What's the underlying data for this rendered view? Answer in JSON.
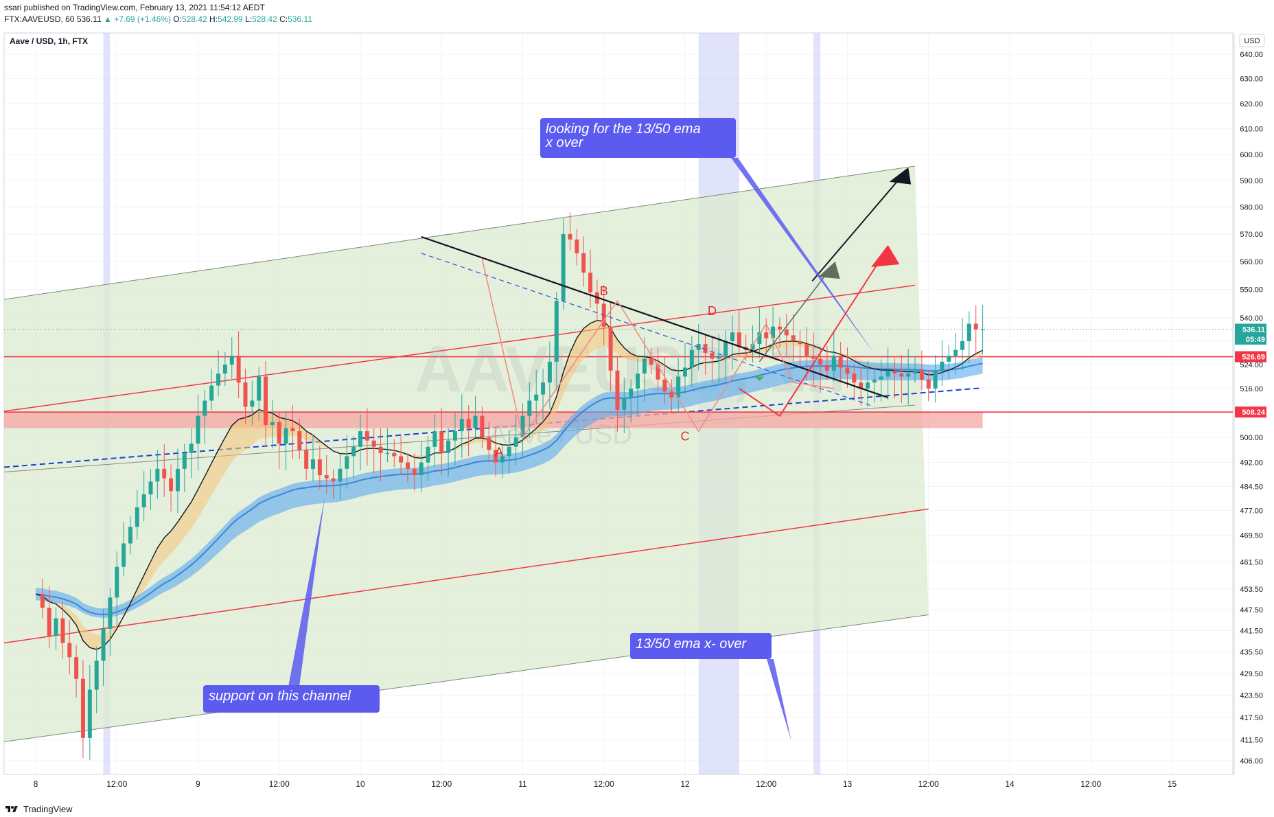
{
  "header": {
    "published": "ssari published on TradingView.com, February 13, 2021 11:54:12 AEDT",
    "symbol": "FTX:AAVEUSD, 60",
    "last": "536.11",
    "change": "+7.69 (+1.46%)",
    "o_label": "O:",
    "o": "528.42",
    "h_label": "H:",
    "h": "542.99",
    "l_label": "L:",
    "l": "528.42",
    "c_label": "C:",
    "c": "536.11"
  },
  "legend": "Aave / USD, 1h, FTX",
  "currency": "USD",
  "watermark": {
    "ticker": "AAVEUSD, 1h",
    "name": "Aave / USD"
  },
  "footer": {
    "brand": "TradingView"
  },
  "price_tags": [
    {
      "price": 536.11,
      "label": "536.11",
      "color": "#26a69a"
    },
    {
      "price": 532.7,
      "label": "05:49",
      "color": "#26a69a"
    },
    {
      "price": 526.69,
      "label": "526.69",
      "color": "#f23645"
    },
    {
      "price": 508.24,
      "label": "508.24",
      "color": "#f23645"
    }
  ],
  "annotations": [
    {
      "text": "looking for the 13/50 ema x over",
      "lines": [
        "looking for the 13/50 ema",
        "x over"
      ]
    },
    {
      "text": "13/50 ema x- over",
      "lines": [
        "13/50 ema x- over"
      ]
    },
    {
      "text": "support on this channel",
      "lines": [
        "support on this channel"
      ]
    }
  ],
  "pattern_labels": [
    "A",
    "B",
    "C",
    "D"
  ],
  "colors": {
    "up": "#26a69a",
    "down": "#ef5350",
    "channel_fill": "#dcebd0",
    "annotation": "#5b5bf0",
    "hline": "#f23645"
  },
  "chart_data": {
    "type": "candlestick",
    "title": "Aave / USD, 1h, FTX",
    "x_ticks": [
      "8",
      "12:00",
      "9",
      "12:00",
      "10",
      "12:00",
      "11",
      "12:00",
      "12",
      "12:00",
      "13",
      "12:00",
      "14",
      "12:00",
      "15"
    ],
    "y_ticks": [
      406.0,
      411.5,
      417.5,
      423.5,
      429.5,
      435.5,
      441.5,
      447.5,
      453.5,
      461.5,
      469.5,
      477.0,
      484.5,
      492.0,
      500.0,
      508.0,
      516.0,
      524.0,
      532.0,
      540.0,
      550.0,
      560.0,
      570.0,
      580.0,
      590.0,
      600.0,
      610.0,
      620.0,
      630.0,
      640.0
    ],
    "y_scale": "log",
    "ylim": [
      402,
      650
    ],
    "horizontal_levels": [
      526.69,
      508.24
    ],
    "support_zone": [
      503,
      508.24
    ],
    "close_series": [
      452,
      448,
      440,
      445,
      438,
      434,
      428,
      412,
      425,
      433,
      442,
      451,
      460,
      467,
      472,
      478,
      482,
      486,
      490,
      487,
      483,
      490,
      495,
      498,
      507,
      512,
      517,
      521,
      524,
      527,
      518,
      510,
      512,
      520,
      504,
      505,
      498,
      503,
      502,
      496,
      490,
      493,
      488,
      487,
      486,
      490,
      494,
      497,
      502,
      499,
      497,
      495,
      495,
      494,
      492,
      490,
      488,
      492,
      497,
      502,
      495,
      499,
      502,
      506,
      503,
      507,
      500,
      496,
      492,
      494,
      497,
      500,
      507,
      512,
      514,
      518,
      525,
      546,
      570,
      568,
      563,
      556,
      549,
      545,
      537,
      522,
      509,
      513,
      516,
      521,
      526,
      524,
      519,
      515,
      513,
      520,
      523,
      529,
      531,
      528,
      526,
      527,
      532,
      535,
      530,
      529,
      531,
      535,
      533,
      537,
      536,
      534,
      532,
      531,
      527,
      526,
      524,
      522,
      527,
      523,
      521,
      518,
      516,
      518,
      519,
      520,
      522,
      521,
      520,
      521,
      522,
      519,
      516,
      522,
      525,
      527,
      529,
      532,
      538,
      536,
      536
    ]
  }
}
